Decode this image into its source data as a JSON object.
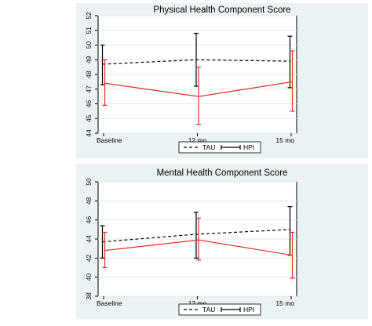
{
  "chart_data": [
    {
      "type": "line",
      "title": "Physical Health Component Score",
      "categories": [
        "Baseline",
        "12 mo",
        "15 mo"
      ],
      "ylim": [
        44,
        52
      ],
      "yticks": [
        44,
        45,
        46,
        47,
        48,
        49,
        50,
        51,
        52
      ],
      "grid": true,
      "legend_placement": "bottom",
      "series": [
        {
          "name": "TAU",
          "color": "#000000",
          "dash": true,
          "values": [
            48.7,
            49.0,
            48.9
          ],
          "ci_low": [
            47.3,
            47.2,
            47.1
          ],
          "ci_high": [
            50.0,
            50.8,
            50.6
          ]
        },
        {
          "name": "HPI",
          "color": "#e8302a",
          "dash": false,
          "values": [
            47.4,
            46.5,
            47.5
          ],
          "ci_low": [
            45.9,
            44.6,
            45.5
          ],
          "ci_high": [
            49.0,
            48.5,
            49.6
          ]
        }
      ]
    },
    {
      "type": "line",
      "title": "Mental Health Component Score",
      "categories": [
        "Baseline",
        "12 mo",
        "15 mo"
      ],
      "ylim": [
        38,
        50
      ],
      "yticks": [
        38,
        40,
        42,
        44,
        46,
        48,
        50
      ],
      "grid": true,
      "legend_placement": "bottom",
      "series": [
        {
          "name": "TAU",
          "color": "#000000",
          "dash": true,
          "values": [
            43.7,
            44.5,
            45.0
          ],
          "ci_low": [
            42.0,
            42.0,
            42.3
          ],
          "ci_high": [
            45.4,
            46.8,
            47.4
          ]
        },
        {
          "name": "HPI",
          "color": "#e8302a",
          "dash": false,
          "values": [
            42.8,
            43.9,
            42.3
          ],
          "ci_low": [
            41.0,
            41.8,
            39.9
          ],
          "ci_high": [
            44.7,
            46.2,
            44.7
          ]
        }
      ]
    }
  ]
}
